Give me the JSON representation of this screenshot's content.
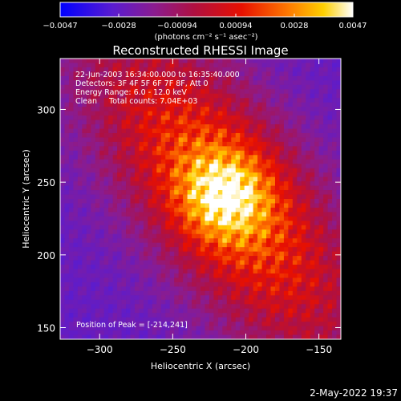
{
  "chart_data": {
    "type": "heatmap",
    "title": "Reconstructed RHESSI Image",
    "xlabel": "Heliocentric X (arcsec)",
    "ylabel": "Heliocentric Y (arcsec)",
    "xlim": [
      -327,
      -135
    ],
    "ylim": [
      142,
      335
    ],
    "xticks": [
      -300,
      -250,
      -200,
      -150
    ],
    "yticks": [
      150,
      200,
      250,
      300
    ],
    "colorbar": {
      "min": -0.0047,
      "max": 0.0047,
      "ticks": [
        "-0.0047",
        "-0.0028",
        "-0.00094",
        "0.00094",
        "0.0028",
        "0.0047"
      ],
      "units_label": "(photons cm⁻² s⁻¹ asec⁻²)"
    },
    "peak": {
      "x": -214,
      "y": 241
    },
    "annotations": [
      "22-Jun-2003 16:34:00.000 to 16:35:40.000",
      "Detectors: 3F 4F 5F 6F 7F 8F, Att 0",
      "Energy Range: 6.0 - 12.0 keV",
      "Clean     Total counts: 7.04E+03"
    ],
    "peak_label": "Position of Peak = [-214,241]",
    "colors": {
      "low": "#0000ff",
      "mid": "#ff0000",
      "high": "#ffffff"
    }
  },
  "footer": {
    "timestamp": "2-May-2022 19:37"
  }
}
